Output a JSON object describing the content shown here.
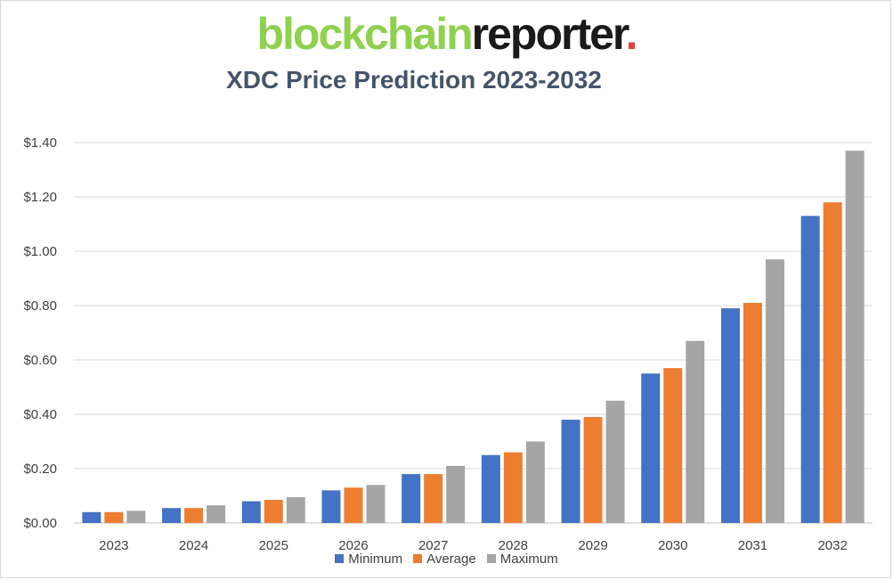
{
  "logo": {
    "part1": "blockchain",
    "part2": "reporter",
    "part3": "."
  },
  "chart_data": {
    "type": "bar",
    "title": "XDC Price Prediction 2023-2032",
    "categories": [
      "2023",
      "2024",
      "2025",
      "2026",
      "2027",
      "2028",
      "2029",
      "2030",
      "2031",
      "2032"
    ],
    "series": [
      {
        "name": "Minimum",
        "color": "#4472c4",
        "values": [
          0.04,
          0.055,
          0.08,
          0.12,
          0.18,
          0.25,
          0.38,
          0.55,
          0.79,
          1.13
        ]
      },
      {
        "name": "Average",
        "color": "#ed7d31",
        "values": [
          0.04,
          0.055,
          0.085,
          0.13,
          0.18,
          0.26,
          0.39,
          0.57,
          0.81,
          1.18
        ]
      },
      {
        "name": "Maximum",
        "color": "#a5a5a5",
        "values": [
          0.045,
          0.065,
          0.095,
          0.14,
          0.21,
          0.3,
          0.45,
          0.67,
          0.97,
          1.37
        ]
      }
    ],
    "yticks": [
      "$0.00",
      "$0.20",
      "$0.40",
      "$0.60",
      "$0.80",
      "$1.00",
      "$1.20",
      "$1.40"
    ],
    "ylim": [
      0,
      1.4
    ],
    "grid": true,
    "legend": "bottom"
  }
}
